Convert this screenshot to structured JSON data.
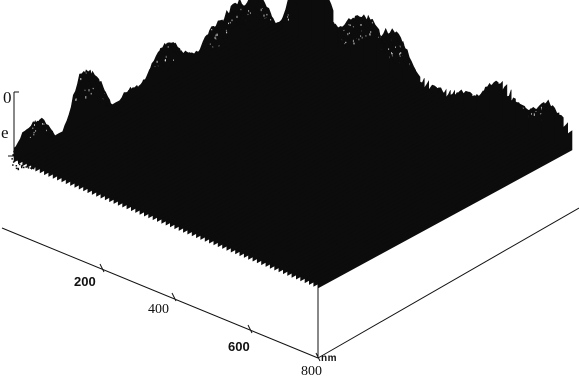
{
  "figure": {
    "side_label_line1": "0",
    "side_label_line2": "e",
    "axis_x_ticks": [
      "200",
      "400",
      "600",
      "800"
    ],
    "unit": "nm",
    "surface_color": "#0c0c0c",
    "highlight_color": "#e6e6e6",
    "axis_color": "#111111"
  }
}
